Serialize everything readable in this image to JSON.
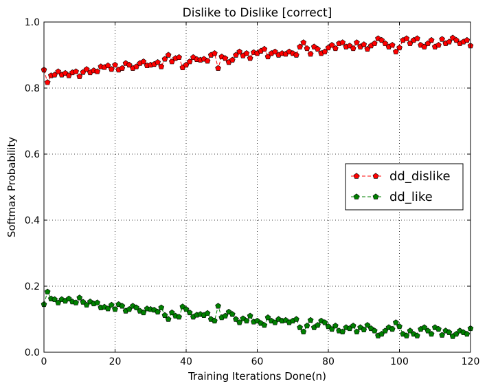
{
  "chart_data": {
    "type": "line",
    "title": "Dislike to Dislike [correct]",
    "xlabel": "Training Iterations Done(n)",
    "ylabel": "Softmax Probability",
    "xlim": [
      0,
      120
    ],
    "ylim": [
      0.0,
      1.0
    ],
    "xticks": [
      "0",
      "20",
      "40",
      "60",
      "80",
      "100",
      "120"
    ],
    "yticks": [
      "0.0",
      "0.2",
      "0.4",
      "0.6",
      "0.8",
      "1.0"
    ],
    "grid": true,
    "legend_position": "center-right",
    "marker": "pentagon",
    "line_style": "dashed",
    "x_start": 0,
    "x_step": 1,
    "series": [
      {
        "name": "dd_dislike",
        "color": "#ff0000",
        "values": [
          0.855,
          0.817,
          0.838,
          0.84,
          0.85,
          0.84,
          0.845,
          0.838,
          0.847,
          0.85,
          0.835,
          0.848,
          0.857,
          0.847,
          0.853,
          0.85,
          0.865,
          0.863,
          0.868,
          0.857,
          0.87,
          0.855,
          0.86,
          0.875,
          0.87,
          0.86,
          0.865,
          0.875,
          0.88,
          0.868,
          0.87,
          0.872,
          0.878,
          0.865,
          0.888,
          0.9,
          0.88,
          0.89,
          0.893,
          0.862,
          0.87,
          0.88,
          0.893,
          0.887,
          0.885,
          0.888,
          0.882,
          0.9,
          0.905,
          0.86,
          0.895,
          0.89,
          0.878,
          0.885,
          0.9,
          0.91,
          0.898,
          0.905,
          0.89,
          0.908,
          0.905,
          0.912,
          0.918,
          0.895,
          0.905,
          0.91,
          0.9,
          0.905,
          0.903,
          0.91,
          0.905,
          0.9,
          0.925,
          0.938,
          0.92,
          0.903,
          0.925,
          0.918,
          0.905,
          0.91,
          0.922,
          0.93,
          0.92,
          0.935,
          0.938,
          0.925,
          0.928,
          0.92,
          0.938,
          0.925,
          0.932,
          0.918,
          0.928,
          0.935,
          0.95,
          0.945,
          0.935,
          0.925,
          0.93,
          0.91,
          0.922,
          0.945,
          0.95,
          0.935,
          0.945,
          0.95,
          0.93,
          0.925,
          0.935,
          0.945,
          0.925,
          0.93,
          0.948,
          0.935,
          0.94,
          0.952,
          0.945,
          0.935,
          0.94,
          0.945,
          0.928
        ]
      },
      {
        "name": "dd_like",
        "color": "#008000",
        "values": [
          0.145,
          0.183,
          0.162,
          0.16,
          0.15,
          0.16,
          0.155,
          0.162,
          0.153,
          0.15,
          0.165,
          0.152,
          0.143,
          0.153,
          0.147,
          0.15,
          0.135,
          0.137,
          0.132,
          0.143,
          0.13,
          0.145,
          0.14,
          0.125,
          0.13,
          0.14,
          0.135,
          0.125,
          0.12,
          0.132,
          0.13,
          0.128,
          0.122,
          0.135,
          0.112,
          0.1,
          0.12,
          0.11,
          0.107,
          0.138,
          0.13,
          0.12,
          0.107,
          0.113,
          0.115,
          0.112,
          0.118,
          0.1,
          0.095,
          0.14,
          0.105,
          0.11,
          0.122,
          0.115,
          0.1,
          0.09,
          0.102,
          0.095,
          0.11,
          0.092,
          0.095,
          0.088,
          0.082,
          0.105,
          0.095,
          0.09,
          0.1,
          0.095,
          0.097,
          0.09,
          0.095,
          0.1,
          0.075,
          0.062,
          0.08,
          0.097,
          0.075,
          0.082,
          0.095,
          0.09,
          0.078,
          0.07,
          0.08,
          0.065,
          0.062,
          0.075,
          0.072,
          0.08,
          0.062,
          0.075,
          0.068,
          0.082,
          0.072,
          0.065,
          0.05,
          0.055,
          0.065,
          0.075,
          0.07,
          0.09,
          0.078,
          0.055,
          0.05,
          0.065,
          0.055,
          0.05,
          0.07,
          0.075,
          0.065,
          0.055,
          0.075,
          0.07,
          0.052,
          0.065,
          0.06,
          0.048,
          0.055,
          0.065,
          0.06,
          0.055,
          0.072
        ]
      }
    ]
  }
}
